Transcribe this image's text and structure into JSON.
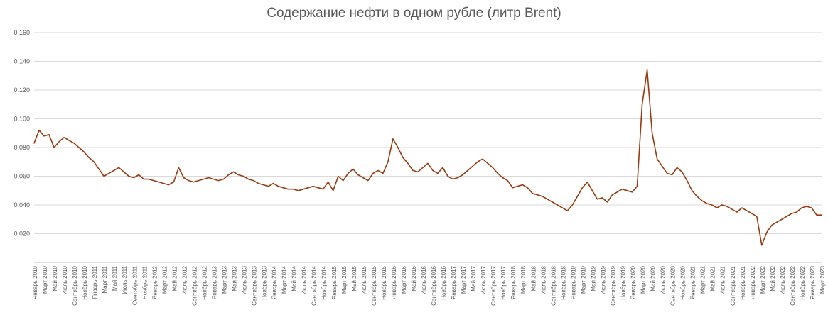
{
  "chart_data": {
    "type": "line",
    "title": "Содержание нефти в одном рубле (литр Brent)",
    "series_name": "Содержание нефти в одном рубле",
    "series_color": "#973A10",
    "grid": "horizontal",
    "legend": "none",
    "ylim": [
      0,
      0.16
    ],
    "y_tick_labels": [
      "0.160",
      "0.140",
      "0.120",
      "0.100",
      "0.080",
      "0.060",
      "0.040",
      "0.020"
    ],
    "x_label_every_n_months": 2,
    "x_tick_labels": [
      "Январь 2010",
      "Март 2010",
      "Май 2010",
      "Июль 2010",
      "Сентябрь 2010",
      "Ноябрь 2010",
      "Январь 2011",
      "Март 2011",
      "Май 2011",
      "Июль 2011",
      "Сентябрь 2011",
      "Ноябрь 2011",
      "Январь 2012",
      "Март 2012",
      "Май 2012",
      "Июль 2012",
      "Сентябрь 2012",
      "Ноябрь 2012",
      "Январь 2013",
      "Март 2013",
      "Май 2013",
      "Июль 2013",
      "Сентябрь 2013",
      "Ноябрь 2013",
      "Январь 2014",
      "Март 2014",
      "Май 2014",
      "Июль 2014",
      "Сентябрь 2014",
      "Ноябрь 2014",
      "Январь 2015",
      "Март 2015",
      "Май 2015",
      "Июль 2015",
      "Сентябрь 2015",
      "Ноябрь 2015",
      "Январь 2016",
      "Март 2016",
      "Май 2016",
      "Июль 2016",
      "Сентябрь 2016",
      "Ноябрь 2016",
      "Январь 2017",
      "Март 2017",
      "Май 2017",
      "Июль 2017",
      "Сентябрь 2017",
      "Ноябрь 2017",
      "Январь 2018",
      "Март 2018",
      "Май 2018",
      "Июль 2018",
      "Сентябрь 2018",
      "Ноябрь 2018",
      "Январь 2019",
      "Март 2019",
      "Май 2019",
      "Июль 2019",
      "Сентябрь 2019",
      "Ноябрь 2019",
      "Январь 2020",
      "Март 2020",
      "Май 2020",
      "Июль 2020",
      "Сентябрь 2020",
      "Ноябрь 2020",
      "Январь 2021",
      "Март 2021",
      "Май 2021",
      "Июль 2021",
      "Сентябрь 2021",
      "Ноябрь 2021",
      "Январь 2022",
      "Март 2022",
      "Май 2022",
      "Июль 2022",
      "Сентябрь 2022",
      "Ноябрь 2022",
      "Январь 2023",
      "Март 2023"
    ],
    "x_start": "Январь 2010",
    "x_end": "Март 2023",
    "monthly_values": [
      0.083,
      0.092,
      0.088,
      0.089,
      0.08,
      0.084,
      0.087,
      0.085,
      0.083,
      0.08,
      0.077,
      0.073,
      0.07,
      0.065,
      0.06,
      0.062,
      0.064,
      0.066,
      0.063,
      0.06,
      0.059,
      0.061,
      0.058,
      0.058,
      0.057,
      0.056,
      0.055,
      0.054,
      0.056,
      0.066,
      0.059,
      0.057,
      0.056,
      0.057,
      0.058,
      0.059,
      0.058,
      0.057,
      0.058,
      0.061,
      0.063,
      0.061,
      0.06,
      0.058,
      0.057,
      0.055,
      0.054,
      0.053,
      0.055,
      0.053,
      0.052,
      0.051,
      0.051,
      0.05,
      0.051,
      0.052,
      0.053,
      0.052,
      0.051,
      0.056,
      0.05,
      0.06,
      0.057,
      0.062,
      0.065,
      0.061,
      0.059,
      0.057,
      0.062,
      0.064,
      0.062,
      0.07,
      0.086,
      0.08,
      0.073,
      0.069,
      0.064,
      0.063,
      0.066,
      0.069,
      0.064,
      0.062,
      0.066,
      0.06,
      0.058,
      0.059,
      0.061,
      0.064,
      0.067,
      0.07,
      0.072,
      0.069,
      0.066,
      0.062,
      0.059,
      0.057,
      0.052,
      0.053,
      0.054,
      0.052,
      0.048,
      0.047,
      0.046,
      0.044,
      0.042,
      0.04,
      0.038,
      0.036,
      0.04,
      0.046,
      0.052,
      0.056,
      0.05,
      0.044,
      0.045,
      0.042,
      0.047,
      0.049,
      0.051,
      0.05,
      0.049,
      0.053,
      0.11,
      0.134,
      0.09,
      0.072,
      0.067,
      0.062,
      0.061,
      0.066,
      0.063,
      0.057,
      0.05,
      0.046,
      0.043,
      0.041,
      0.04,
      0.038,
      0.04,
      0.039,
      0.037,
      0.035,
      0.038,
      0.036,
      0.034,
      0.032,
      0.012,
      0.021,
      0.026,
      0.028,
      0.03,
      0.032,
      0.034,
      0.035,
      0.038,
      0.039,
      0.038,
      0.033,
      0.033
    ]
  }
}
